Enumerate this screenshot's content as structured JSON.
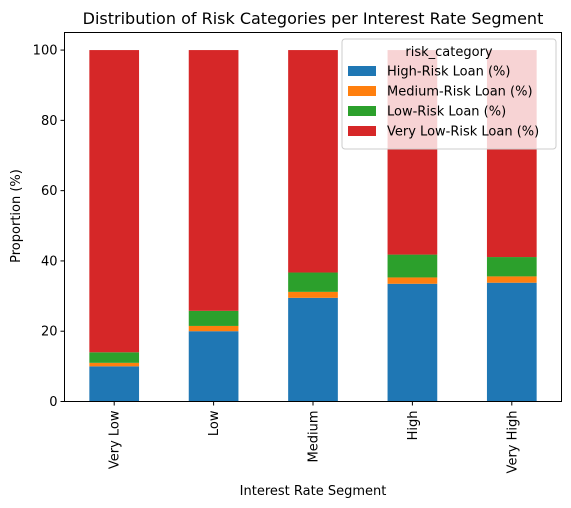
{
  "chart_data": {
    "type": "bar",
    "stacked": true,
    "title": "Distribution of Risk Categories per Interest Rate Segment",
    "xlabel": "Interest Rate Segment",
    "ylabel": "Proportion (%)",
    "ylim": [
      0,
      105
    ],
    "yticks": [
      "0",
      "20",
      "40",
      "60",
      "80",
      "100"
    ],
    "categories": [
      "Very Low",
      "Low",
      "Medium",
      "High",
      "Very High"
    ],
    "legend_title": "risk_category",
    "legend_position": "upper-right",
    "grid": false,
    "series": [
      {
        "name": "High-Risk Loan (%)",
        "color": "#1f77b4",
        "values": [
          10.0,
          20.0,
          29.5,
          33.5,
          33.8
        ]
      },
      {
        "name": "Medium-Risk Loan (%)",
        "color": "#ff7f0e",
        "values": [
          1.0,
          1.5,
          1.7,
          1.8,
          1.8
        ]
      },
      {
        "name": "Low-Risk Loan (%)",
        "color": "#2ca02c",
        "values": [
          3.0,
          4.3,
          5.5,
          6.5,
          5.5
        ]
      },
      {
        "name": "Very Low-Risk Loan (%)",
        "color": "#d62728",
        "values": [
          86.0,
          74.2,
          63.3,
          58.2,
          58.9
        ]
      }
    ]
  }
}
